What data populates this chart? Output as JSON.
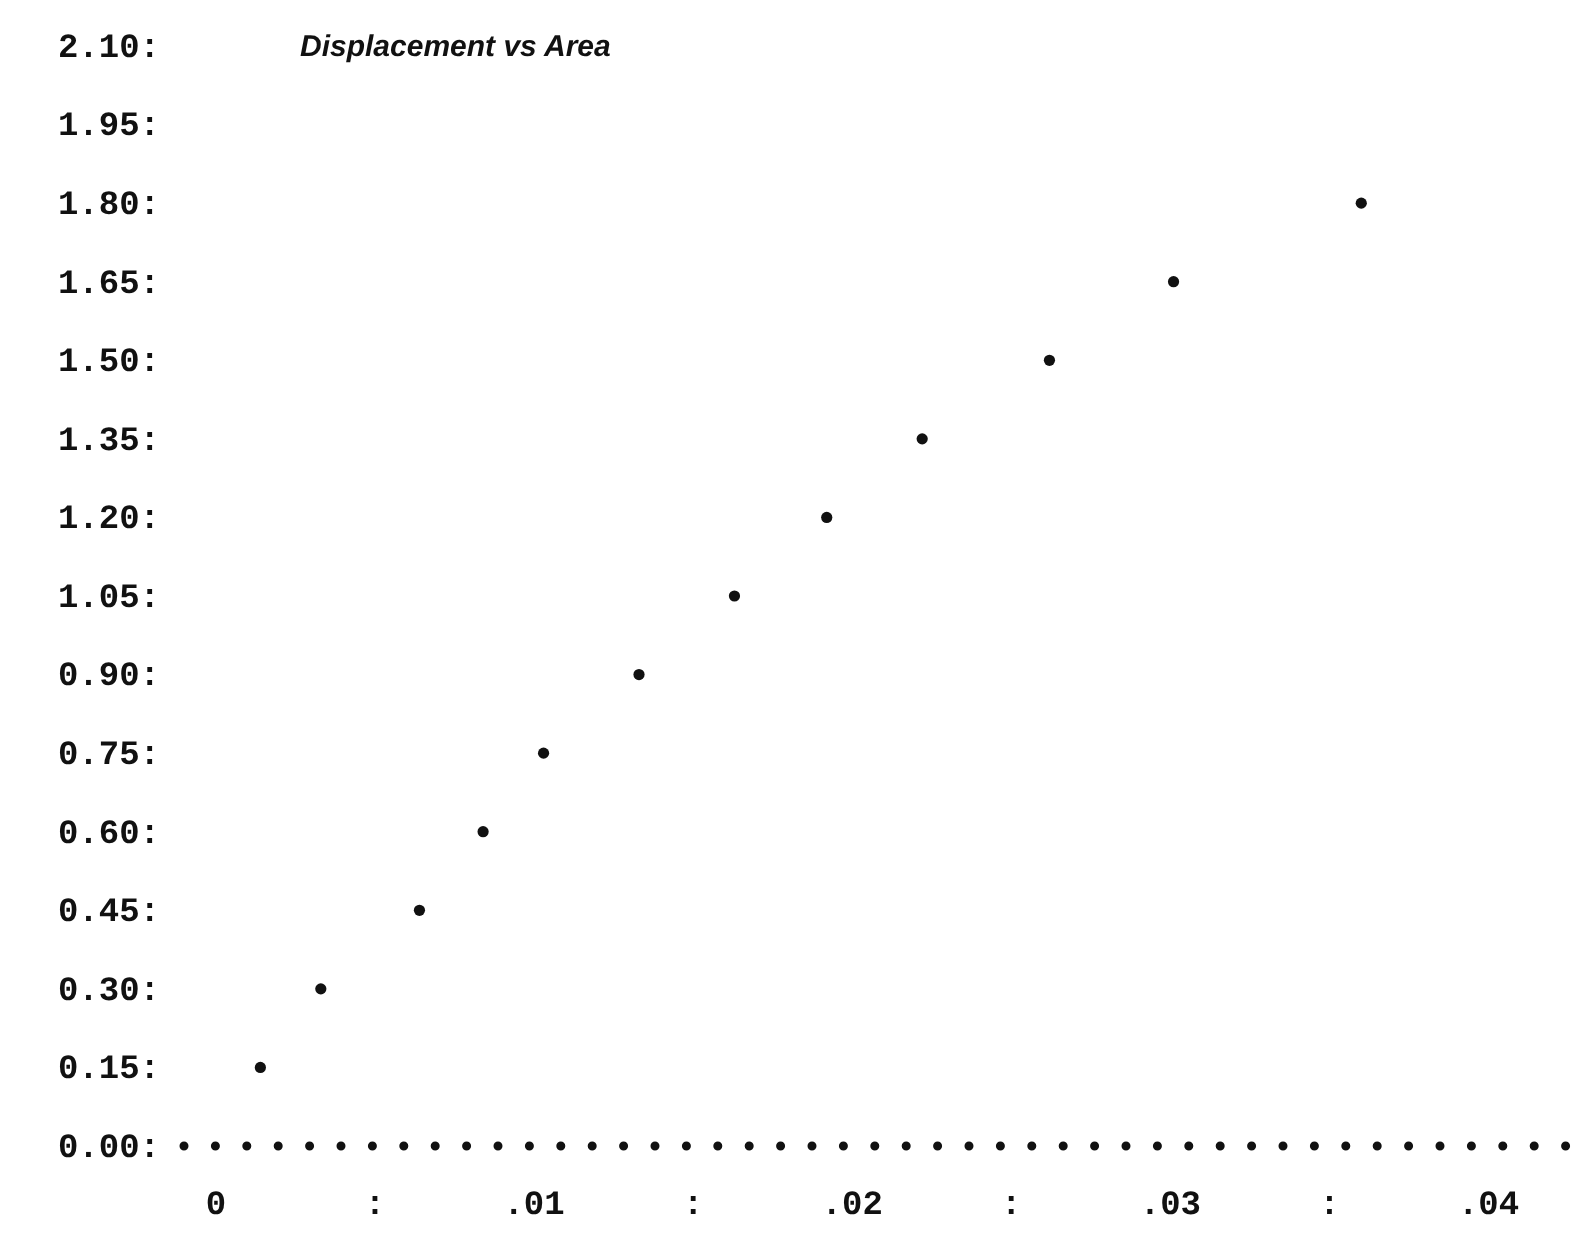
{
  "chart_data": {
    "type": "scatter",
    "title": "Displacement vs Area",
    "marker": "circle",
    "x": [
      0.0014,
      0.0033,
      0.0064,
      0.0084,
      0.0103,
      0.0133,
      0.0163,
      0.0192,
      0.0222,
      0.0262,
      0.0301,
      0.036
    ],
    "series": [
      {
        "color": "#111111",
        "values": [
          0.15,
          0.3,
          0.45,
          0.6,
          0.75,
          0.9,
          1.05,
          1.2,
          1.35,
          1.5,
          1.65,
          1.8
        ]
      }
    ],
    "xlim": [
      -0.001,
      0.043
    ],
    "xticks": [
      {
        "value": 0,
        "label": "0"
      },
      {
        "value": 0.005,
        "label": ":"
      },
      {
        "value": 0.01,
        "label": ".01"
      },
      {
        "value": 0.015,
        "label": ":"
      },
      {
        "value": 0.02,
        "label": ".02"
      },
      {
        "value": 0.025,
        "label": ":"
      },
      {
        "value": 0.03,
        "label": ".03"
      },
      {
        "value": 0.035,
        "label": ":"
      },
      {
        "value": 0.04,
        "label": ".04"
      }
    ],
    "ylim": [
      0,
      2.1
    ],
    "yticks": [
      {
        "value": 0,
        "label": "0.00:"
      },
      {
        "value": 0.15,
        "label": "0.15:"
      },
      {
        "value": 0.3,
        "label": "0.30:"
      },
      {
        "value": 0.45,
        "label": "0.45:"
      },
      {
        "value": 0.6,
        "label": "0.60:"
      },
      {
        "value": 0.75,
        "label": "0.75:"
      },
      {
        "value": 0.9,
        "label": "0.90:"
      },
      {
        "value": 1.05,
        "label": "1.05:"
      },
      {
        "value": 1.2,
        "label": "1.20:"
      },
      {
        "value": 1.35,
        "label": "1.35:"
      },
      {
        "value": 1.5,
        "label": "1.50:"
      },
      {
        "value": 1.65,
        "label": "1.65:"
      },
      {
        "value": 1.8,
        "label": "1.80:"
      },
      {
        "value": 1.95,
        "label": "1.95:"
      },
      {
        "value": 2.1,
        "label": "2.10:"
      }
    ]
  }
}
